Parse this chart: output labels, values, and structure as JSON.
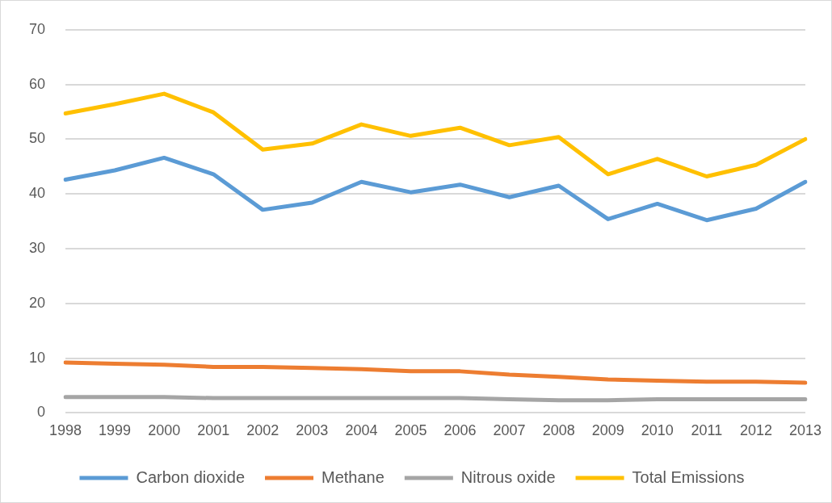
{
  "chart_data": {
    "type": "line",
    "categories": [
      "1998",
      "1999",
      "2000",
      "2001",
      "2002",
      "2003",
      "2004",
      "2005",
      "2006",
      "2007",
      "2008",
      "2009",
      "2010",
      "2011",
      "2012",
      "2013"
    ],
    "series": [
      {
        "name": "Carbon dioxide",
        "color": "#5b9bd5",
        "values": [
          42.6,
          44.3,
          46.6,
          43.6,
          37.1,
          38.4,
          42.2,
          40.3,
          41.7,
          39.4,
          41.5,
          35.4,
          38.2,
          35.2,
          37.3,
          42.2
        ]
      },
      {
        "name": "Methane",
        "color": "#ed7d31",
        "values": [
          9.2,
          9.0,
          8.8,
          8.4,
          8.4,
          8.2,
          8.0,
          7.6,
          7.6,
          7.0,
          6.6,
          6.1,
          5.9,
          5.7,
          5.7,
          5.5
        ]
      },
      {
        "name": "Nitrous oxide",
        "color": "#a5a5a5",
        "values": [
          2.9,
          2.9,
          2.9,
          2.7,
          2.7,
          2.7,
          2.7,
          2.7,
          2.7,
          2.5,
          2.3,
          2.3,
          2.5,
          2.5,
          2.5,
          2.5
        ]
      },
      {
        "name": "Total Emissions",
        "color": "#ffc000",
        "values": [
          54.7,
          56.4,
          58.3,
          54.9,
          48.1,
          49.2,
          52.7,
          50.6,
          52.1,
          48.9,
          50.4,
          43.6,
          46.4,
          43.2,
          45.3,
          50.0
        ]
      }
    ],
    "ylim": [
      0,
      70
    ],
    "yticks": [
      0,
      10,
      20,
      30,
      40,
      50,
      60,
      70
    ],
    "grid": "y",
    "legend": "bottom",
    "marker": "none",
    "line_style": "solid"
  }
}
